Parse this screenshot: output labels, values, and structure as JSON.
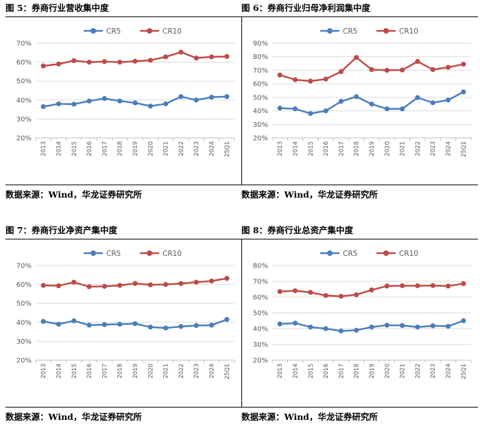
{
  "colors": {
    "cr5": "#4a7ebb",
    "cr10": "#be4b48",
    "grid": "#d9d9d9",
    "axis": "#bfbfbf",
    "text": "#595959"
  },
  "chart_data": [
    {
      "type": "line",
      "title": "图 5：券商行业营收集中度",
      "source": "数据来源：Wind，华龙证券研究所",
      "ylim": [
        20,
        70
      ],
      "ystep": 10,
      "yunit": "%",
      "legend_position": "top-center",
      "categories": [
        "2013",
        "2014",
        "2015",
        "2016",
        "2017",
        "2018",
        "2019",
        "2020",
        "2021",
        "2022",
        "2023",
        "2024",
        "25Q1"
      ],
      "series": [
        {
          "name": "CR5",
          "values": [
            36.5,
            38,
            37.8,
            39.5,
            40.8,
            39.5,
            38.5,
            36.8,
            38,
            41.8,
            40,
            41.5,
            41.8
          ]
        },
        {
          "name": "CR10",
          "values": [
            58,
            59,
            60.8,
            60,
            60.3,
            60,
            60.5,
            61,
            62.8,
            65.3,
            62.2,
            62.8,
            63
          ]
        }
      ]
    },
    {
      "type": "line",
      "title": "图 6：券商行业归母净利润集中度",
      "source": "数据来源：Wind，华龙证券研究所",
      "ylim": [
        20,
        90
      ],
      "ystep": 10,
      "yunit": "%",
      "legend_position": "top-center",
      "categories": [
        "2013",
        "2014",
        "2015",
        "2016",
        "2017",
        "2018",
        "2019",
        "2020",
        "2021",
        "2022",
        "2023",
        "2024",
        "25Q1"
      ],
      "series": [
        {
          "name": "CR5",
          "values": [
            42,
            41.5,
            38,
            40,
            47,
            50.5,
            45,
            41.5,
            41.5,
            49.8,
            46,
            48,
            54
          ]
        },
        {
          "name": "CR10",
          "values": [
            66.5,
            63,
            62,
            63.5,
            69,
            79.5,
            70.5,
            70,
            70.2,
            76.5,
            70.5,
            72.2,
            74.5
          ]
        }
      ]
    },
    {
      "type": "line",
      "title": "图 7：券商行业净资产集中度",
      "source": "数据来源：Wind，华龙证券研究所",
      "ylim": [
        20,
        70
      ],
      "ystep": 10,
      "yunit": "%",
      "legend_position": "top-center",
      "categories": [
        "2013",
        "2014",
        "2015",
        "2016",
        "2017",
        "2018",
        "2019",
        "2020",
        "2021",
        "2022",
        "2023",
        "2024",
        "25Q1"
      ],
      "series": [
        {
          "name": "CR5",
          "values": [
            40.5,
            39,
            40.8,
            38.5,
            38.8,
            39,
            39.3,
            37.5,
            37,
            37.8,
            38.3,
            38.5,
            41.5
          ]
        },
        {
          "name": "CR10",
          "values": [
            59.5,
            59.3,
            61.2,
            58.8,
            59,
            59.5,
            60.5,
            59.8,
            60,
            60.5,
            61.2,
            61.8,
            63.2
          ]
        }
      ]
    },
    {
      "type": "line",
      "title": "图 8：券商行业总资产集中度",
      "source": "数据来源：Wind，华龙证券研究所",
      "ylim": [
        20,
        80
      ],
      "ystep": 10,
      "yunit": "%",
      "legend_position": "top-center",
      "categories": [
        "2013",
        "2014",
        "2015",
        "2016",
        "2017",
        "2018",
        "2019",
        "2020",
        "2021",
        "2022",
        "2023",
        "2024",
        "25Q1"
      ],
      "series": [
        {
          "name": "CR5",
          "values": [
            43,
            43.5,
            41,
            40,
            38.5,
            39,
            41,
            42.2,
            42,
            41,
            41.8,
            41.5,
            45
          ]
        },
        {
          "name": "CR10",
          "values": [
            63.5,
            64,
            63,
            61,
            60.5,
            61.5,
            64.5,
            67,
            67.2,
            67.2,
            67.3,
            67,
            68.5
          ]
        }
      ]
    }
  ]
}
